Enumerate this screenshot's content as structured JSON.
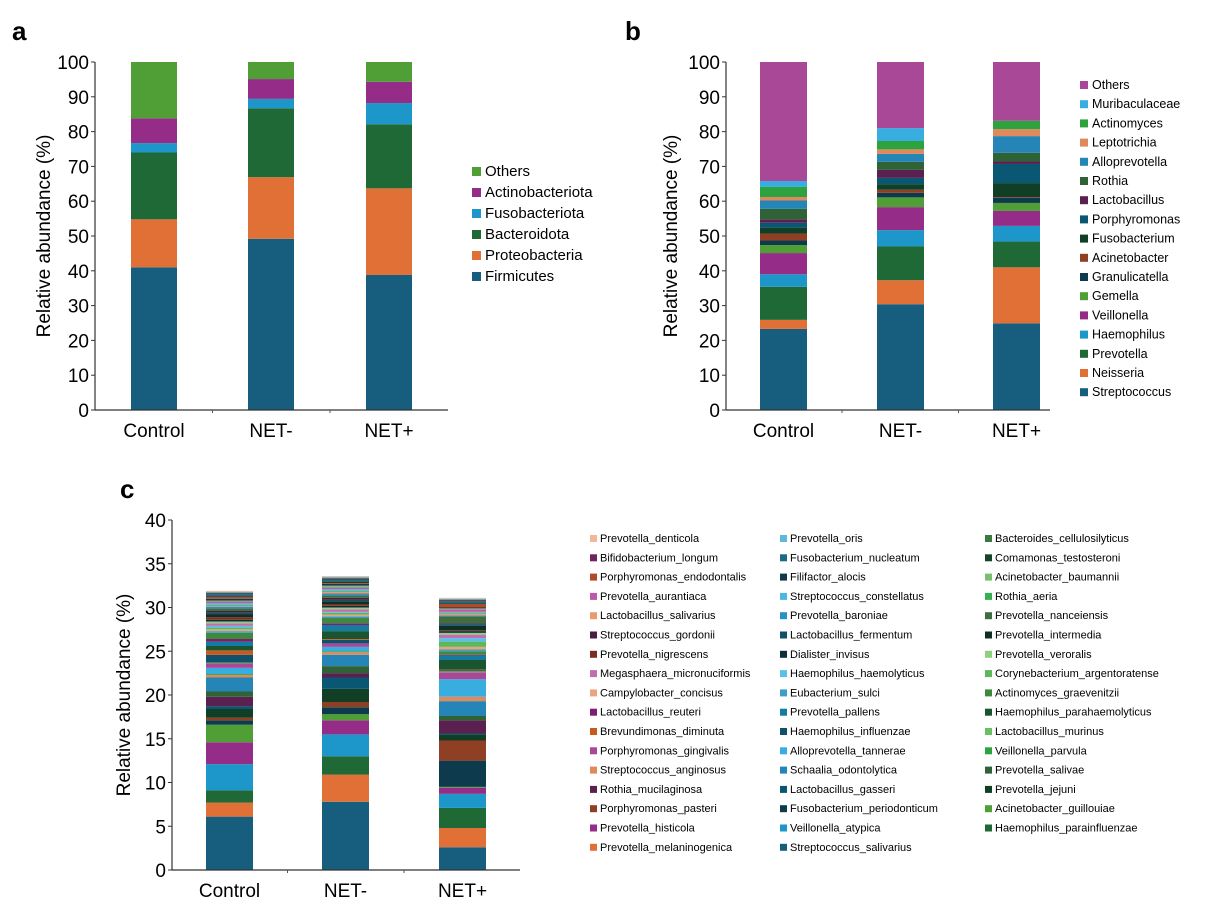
{
  "chart_data": [
    {
      "panel": "a",
      "type": "bar",
      "stacked": true,
      "title": "",
      "xlabel": "",
      "ylabel": "Relative abundance (%)",
      "ylim": [
        0,
        100
      ],
      "yticks": [
        0,
        10,
        20,
        30,
        40,
        50,
        60,
        70,
        80,
        90,
        100
      ],
      "categories": [
        "Control",
        "NET-",
        "NET+"
      ],
      "legend_position": "right",
      "series": [
        {
          "name": "Firmicutes",
          "color": "#175e7e",
          "values": [
            41.0,
            49.2,
            38.8
          ]
        },
        {
          "name": "Proteobacteria",
          "color": "#e07036",
          "values": [
            13.8,
            17.7,
            24.9
          ]
        },
        {
          "name": "Bacteroidota",
          "color": "#1e6935",
          "values": [
            19.2,
            19.8,
            18.4
          ]
        },
        {
          "name": "Fusobacteriota",
          "color": "#1d96c9",
          "values": [
            2.7,
            2.7,
            6.1
          ]
        },
        {
          "name": "Actinobacteriota",
          "color": "#952c87",
          "values": [
            7.1,
            5.7,
            6.1
          ]
        },
        {
          "name": "Others",
          "color": "#4f9f36",
          "values": [
            16.2,
            4.9,
            5.7
          ]
        }
      ]
    },
    {
      "panel": "b",
      "type": "bar",
      "stacked": true,
      "title": "",
      "xlabel": "",
      "ylabel": "Relative abundance (%)",
      "ylim": [
        0,
        100
      ],
      "yticks": [
        0,
        10,
        20,
        30,
        40,
        50,
        60,
        70,
        80,
        90,
        100
      ],
      "categories": [
        "Control",
        "NET-",
        "NET+"
      ],
      "legend_position": "right",
      "series": [
        {
          "name": "Streptococcus",
          "color": "#175e7e",
          "values": [
            23.3,
            30.4,
            24.9
          ]
        },
        {
          "name": "Neisseria",
          "color": "#e07036",
          "values": [
            2.6,
            6.9,
            16.1
          ]
        },
        {
          "name": "Prevotella",
          "color": "#1e6935",
          "values": [
            9.5,
            9.7,
            7.4
          ]
        },
        {
          "name": "Haemophilus",
          "color": "#1d96c9",
          "values": [
            3.6,
            4.7,
            4.5
          ]
        },
        {
          "name": "Veillonella",
          "color": "#952c87",
          "values": [
            6.1,
            6.6,
            4.3
          ]
        },
        {
          "name": "Gemella",
          "color": "#4f9f36",
          "values": [
            2.3,
            2.8,
            2.3
          ]
        },
        {
          "name": "Granulicatella",
          "color": "#0d3a4d",
          "values": [
            1.3,
            1.3,
            1.5
          ]
        },
        {
          "name": "Acinetobacter",
          "color": "#8e3f24",
          "values": [
            2.0,
            0.9,
            0.2
          ]
        },
        {
          "name": "Fusobacterium",
          "color": "#103f25",
          "values": [
            1.7,
            1.6,
            4.0
          ]
        },
        {
          "name": "Porphyromonas",
          "color": "#0a5774",
          "values": [
            1.4,
            1.8,
            5.5
          ]
        },
        {
          "name": "Lactobacillus",
          "color": "#5a2150",
          "values": [
            1.0,
            2.3,
            0.7
          ]
        },
        {
          "name": "Rothia",
          "color": "#2f6335",
          "values": [
            3.0,
            2.3,
            2.5
          ]
        },
        {
          "name": "Alloprevotella",
          "color": "#2585b6",
          "values": [
            2.4,
            2.3,
            4.8
          ]
        },
        {
          "name": "Leptotrichia",
          "color": "#e0895c",
          "values": [
            1.0,
            1.3,
            2.0
          ]
        },
        {
          "name": "Actinomyces",
          "color": "#2ea23e",
          "values": [
            2.9,
            2.4,
            2.4
          ]
        },
        {
          "name": "Muribaculaceae",
          "color": "#38ade0",
          "values": [
            1.7,
            3.7,
            0.0
          ]
        },
        {
          "name": "Others",
          "color": "#a84896",
          "values": [
            34.2,
            19.0,
            16.9
          ]
        }
      ]
    },
    {
      "panel": "c",
      "type": "bar",
      "stacked": true,
      "title": "",
      "xlabel": "",
      "ylabel": "Relative abundance (%)",
      "ylim": [
        0,
        40
      ],
      "yticks": [
        0,
        5,
        10,
        15,
        20,
        25,
        30,
        35,
        40
      ],
      "categories": [
        "Control",
        "NET-",
        "NET+"
      ],
      "totals": [
        32.4,
        33.7,
        30.8
      ],
      "legend_position": "right",
      "legend_columns": [
        [
          "Prevotella_denticola",
          "Bifidobacterium_longum",
          "Porphyromonas_endodontalis",
          "Prevotella_aurantiaca",
          "Lactobacillus_salivarius",
          "Streptococcus_gordonii",
          "Prevotella_nigrescens",
          "Megasphaera_micronuciformis",
          "Campylobacter_concisus",
          "Lactobacillus_reuteri",
          "Brevundimonas_diminuta",
          "Porphyromonas_gingivalis",
          "Streptococcus_anginosus",
          "Rothia_mucilaginosa",
          "Porphyromonas_pasteri",
          "Prevotella_histicola",
          "Prevotella_melaninogenica"
        ],
        [
          "Prevotella_oris",
          "Fusobacterium_nucleatum",
          "Filifactor_alocis",
          "Streptococcus_constellatus",
          "Prevotella_baroniae",
          "Lactobacillus_fermentum",
          "Dialister_invisus",
          "Haemophilus_haemolyticus",
          "Eubacterium_sulci",
          "Prevotella_pallens",
          "Haemophilus_influenzae",
          "Alloprevotella_tannerae",
          "Schaalia_odontolytica",
          "Lactobacillus_gasseri",
          "Fusobacterium_periodonticum",
          "Veillonella_atypica",
          "Streptococcus_salivarius"
        ],
        [
          "Bacteroides_cellulosilyticus",
          "Comamonas_testosteroni",
          "Acinetobacter_baumannii",
          "Rothia_aeria",
          "Prevotella_nanceiensis",
          "Prevotella_intermedia",
          "Prevotella_veroralis",
          "Corynebacterium_argentoratense",
          "Actinomyces_graevenitzii",
          "Haemophilus_parahaemolyticus",
          "Lactobacillus_murinus",
          "Veillonella_parvula",
          "Prevotella_salivae",
          "Prevotella_jejuni",
          "Acinetobacter_guillouiae",
          "Haemophilus_parainfluenzae"
        ]
      ],
      "series": [
        {
          "name": "Streptococcus_salivarius",
          "color": "#175e7e",
          "values": [
            6.1,
            7.8,
            2.6
          ]
        },
        {
          "name": "Prevotella_melaninogenica",
          "color": "#e07036",
          "values": [
            1.6,
            3.1,
            2.2
          ]
        },
        {
          "name": "Haemophilus_parainfluenzae",
          "color": "#1e6935",
          "values": [
            1.4,
            2.1,
            2.3
          ]
        },
        {
          "name": "Veillonella_atypica",
          "color": "#1d96c9",
          "values": [
            3.0,
            2.5,
            1.6
          ]
        },
        {
          "name": "Prevotella_histicola",
          "color": "#952c87",
          "values": [
            2.5,
            1.6,
            0.7
          ]
        },
        {
          "name": "Acinetobacter_guillouiae",
          "color": "#4f9f36",
          "values": [
            2.0,
            0.7,
            0.1
          ]
        },
        {
          "name": "Fusobacterium_periodonticum",
          "color": "#0d3a4d",
          "values": [
            0.5,
            0.8,
            3.0
          ]
        },
        {
          "name": "Porphyromonas_pasteri",
          "color": "#8e3f24",
          "values": [
            0.3,
            0.6,
            2.3
          ]
        },
        {
          "name": "Prevotella_jejuni",
          "color": "#103f25",
          "values": [
            1.0,
            1.5,
            0.7
          ]
        },
        {
          "name": "Lactobacillus_gasseri",
          "color": "#0a5774",
          "values": [
            0.3,
            1.3,
            0.1
          ]
        },
        {
          "name": "Rothia_mucilaginosa",
          "color": "#5a2150",
          "values": [
            1.1,
            0.5,
            1.5
          ]
        },
        {
          "name": "Prevotella_salivae",
          "color": "#2f6335",
          "values": [
            0.6,
            0.8,
            0.5
          ]
        },
        {
          "name": "Schaalia_odontolytica",
          "color": "#2585b6",
          "values": [
            1.6,
            1.3,
            1.7
          ]
        },
        {
          "name": "Streptococcus_anginosus",
          "color": "#e0895c",
          "values": [
            0.3,
            0.3,
            0.5
          ]
        },
        {
          "name": "Veillonella_parvula",
          "color": "#2ea23e",
          "values": [
            0.1,
            0.1,
            0.0
          ]
        },
        {
          "name": "Alloprevotella_tannerae",
          "color": "#38ade0",
          "values": [
            0.7,
            0.5,
            2.0
          ]
        },
        {
          "name": "Porphyromonas_gingivalis",
          "color": "#a84896",
          "values": [
            0.5,
            0.4,
            0.8
          ]
        },
        {
          "name": "Lactobacillus_murinus",
          "color": "#6abf5e",
          "values": [
            0.1,
            0.0,
            0.1
          ]
        },
        {
          "name": "Haemophilus_influenzae",
          "color": "#10506a",
          "values": [
            0.9,
            0.4,
            0.1
          ]
        },
        {
          "name": "Brevundimonas_diminuta",
          "color": "#c85a20",
          "values": [
            0.5,
            0.1,
            0.1
          ]
        },
        {
          "name": "Haemophilus_parahaemolyticus",
          "color": "#195530",
          "values": [
            0.5,
            0.9,
            1.1
          ]
        },
        {
          "name": "Prevotella_pallens",
          "color": "#167ba0",
          "values": [
            0.5,
            0.7,
            0.5
          ]
        },
        {
          "name": "Lactobacillus_reuteri",
          "color": "#7e1e6e",
          "values": [
            0.3,
            0.2,
            0.1
          ]
        },
        {
          "name": "Actinomyces_graevenitzii",
          "color": "#3d8a3c",
          "values": [
            0.7,
            0.6,
            0.4
          ]
        },
        {
          "name": "Eubacterium_sulci",
          "color": "#3f9ec8",
          "values": [
            0.2,
            0.2,
            0.2
          ]
        },
        {
          "name": "Campylobacter_concisus",
          "color": "#eba57e",
          "values": [
            0.2,
            0.2,
            0.3
          ]
        },
        {
          "name": "Corynebacterium_argentoratense",
          "color": "#5cb85a",
          "values": [
            0.2,
            0.2,
            0.6
          ]
        },
        {
          "name": "Haemophilus_haemolyticus",
          "color": "#5bc0e8",
          "values": [
            0.2,
            0.1,
            0.4
          ]
        },
        {
          "name": "Megasphaera_micronuciformis",
          "color": "#c070b0",
          "values": [
            0.3,
            0.3,
            0.4
          ]
        },
        {
          "name": "Prevotella_veroralis",
          "color": "#8fcf7e",
          "values": [
            0.2,
            0.2,
            0.2
          ]
        },
        {
          "name": "Dialister_invisus",
          "color": "#0e2e3a",
          "values": [
            0.2,
            0.2,
            0.2
          ]
        },
        {
          "name": "Prevotella_nigrescens",
          "color": "#7a3020",
          "values": [
            0.3,
            0.2,
            0.1
          ]
        },
        {
          "name": "Prevotella_intermedia",
          "color": "#0f3020",
          "values": [
            0.3,
            0.3,
            0.5
          ]
        },
        {
          "name": "Lactobacillus_fermentum",
          "color": "#125068",
          "values": [
            0.2,
            0.2,
            0.2
          ]
        },
        {
          "name": "Streptococcus_gordonii",
          "color": "#4a1e40",
          "values": [
            0.2,
            0.2,
            0.1
          ]
        },
        {
          "name": "Prevotella_nanceiensis",
          "color": "#3e6e40",
          "values": [
            0.3,
            0.3,
            0.8
          ]
        },
        {
          "name": "Prevotella_baroniae",
          "color": "#2a90c8",
          "values": [
            0.2,
            0.2,
            0.1
          ]
        },
        {
          "name": "Lactobacillus_salivarius",
          "color": "#eb9a70",
          "values": [
            0.1,
            0.2,
            0.2
          ]
        },
        {
          "name": "Rothia_aeria",
          "color": "#34b050",
          "values": [
            0.1,
            0.1,
            0.1
          ]
        },
        {
          "name": "Streptococcus_constellatus",
          "color": "#4ab8e0",
          "values": [
            0.2,
            0.2,
            0.1
          ]
        },
        {
          "name": "Prevotella_aurantiaca",
          "color": "#c058a8",
          "values": [
            0.2,
            0.2,
            0.3
          ]
        },
        {
          "name": "Acinetobacter_baumannii",
          "color": "#78c070",
          "values": [
            0.1,
            0.2,
            0.1
          ]
        },
        {
          "name": "Filifactor_alocis",
          "color": "#15384a",
          "values": [
            0.2,
            0.2,
            0.1
          ]
        },
        {
          "name": "Porphyromonas_endodontalis",
          "color": "#b04a28",
          "values": [
            0.2,
            0.1,
            0.4
          ]
        },
        {
          "name": "Comamonas_testosteroni",
          "color": "#14452a",
          "values": [
            0.1,
            0.2,
            0.1
          ]
        },
        {
          "name": "Fusobacterium_nucleatum",
          "color": "#1a6a88",
          "values": [
            0.2,
            0.2,
            0.2
          ]
        },
        {
          "name": "Bifidobacterium_longum",
          "color": "#6e2460",
          "values": [
            0.1,
            0.1,
            0.1
          ]
        },
        {
          "name": "Bacteroides_cellulosilyticus",
          "color": "#3a7a40",
          "values": [
            0.1,
            0.1,
            0.1
          ]
        },
        {
          "name": "Prevotella_oris",
          "color": "#60b8d8",
          "values": [
            0.1,
            0.1,
            0.1
          ]
        },
        {
          "name": "Prevotella_denticola",
          "color": "#f0b898",
          "values": [
            0.1,
            0.1,
            0.1
          ]
        }
      ]
    }
  ],
  "panels": {
    "a": {
      "letter": "a"
    },
    "b": {
      "letter": "b"
    },
    "c": {
      "letter": "c"
    }
  }
}
